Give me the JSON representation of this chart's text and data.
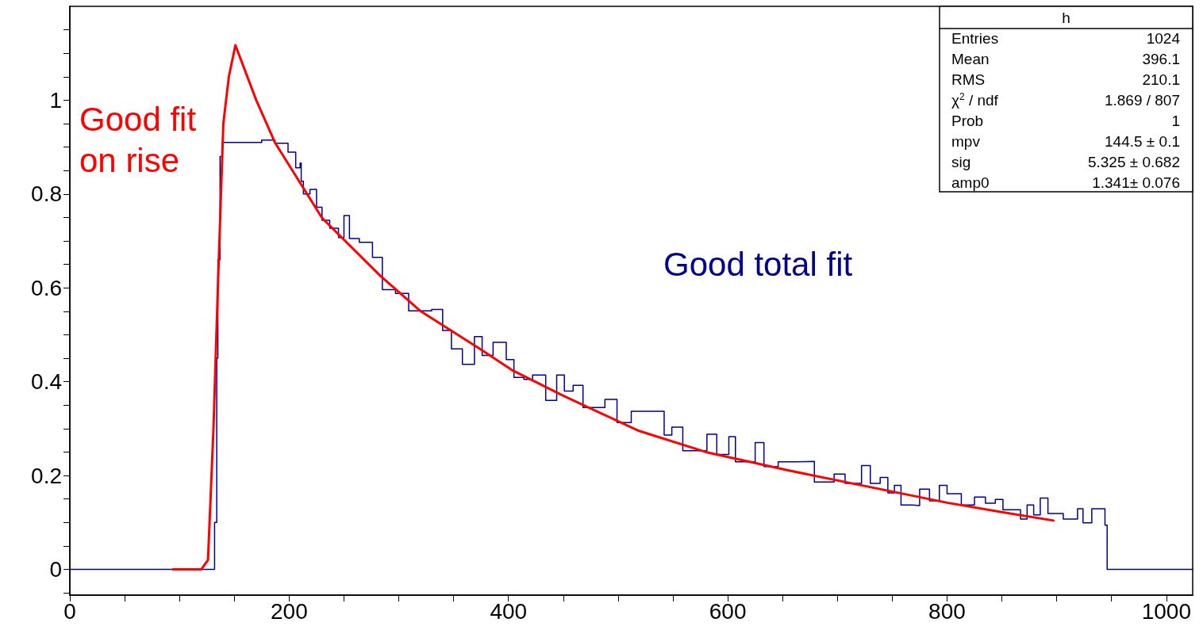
{
  "chart_data": {
    "type": "step",
    "xlim": [
      0,
      1024
    ],
    "xticks": [
      0,
      {
        "value": 50,
        "label": null
      },
      {
        "value": 100,
        "label": null
      },
      {
        "value": 150,
        "label": null
      },
      200,
      {
        "value": 250,
        "label": null
      },
      {
        "value": 300,
        "label": null
      },
      {
        "value": 350,
        "label": null
      },
      400,
      {
        "value": 450,
        "label": null
      },
      {
        "value": 500,
        "label": null
      },
      {
        "value": 550,
        "label": null
      },
      600,
      {
        "value": 650,
        "label": null
      },
      {
        "value": 700,
        "label": null
      },
      {
        "value": 750,
        "label": null
      },
      800,
      {
        "value": 850,
        "label": null
      },
      {
        "value": 900,
        "label": null
      },
      {
        "value": 950,
        "label": null
      },
      1000
    ],
    "ylim": [
      -0.055,
      1.2
    ],
    "yticks": [
      {
        "value": -0.05,
        "label": null
      },
      0,
      {
        "value": 0.05,
        "label": null
      },
      {
        "value": 0.1,
        "label": null
      },
      {
        "value": 0.15,
        "label": null
      },
      0.2,
      {
        "value": 0.25,
        "label": null
      },
      {
        "value": 0.3,
        "label": null
      },
      {
        "value": 0.35,
        "label": null
      },
      0.4,
      {
        "value": 0.45,
        "label": null
      },
      {
        "value": 0.5,
        "label": null
      },
      {
        "value": 0.55,
        "label": null
      },
      0.6,
      {
        "value": 0.65,
        "label": null
      },
      {
        "value": 0.7,
        "label": null
      },
      {
        "value": 0.75,
        "label": null
      },
      0.8,
      {
        "value": 0.85,
        "label": null
      },
      {
        "value": 0.9,
        "label": null
      },
      {
        "value": 0.95,
        "label": null
      },
      1,
      {
        "value": 1.05,
        "label": null
      },
      {
        "value": 1.1,
        "label": null
      },
      {
        "value": 1.15,
        "label": null
      }
    ],
    "grid": false,
    "marker": "none",
    "line_style": "solid",
    "series": [
      {
        "color": "#00008b",
        "x": [
          0,
          130,
          132,
          134,
          135,
          137,
          139,
          160,
          175,
          187,
          199,
          206,
          210,
          211,
          213,
          219,
          225,
          230,
          237,
          245,
          250,
          255,
          264,
          276,
          285,
          297,
          309,
          330,
          340,
          348,
          358,
          369,
          376,
          386,
          398,
          405,
          414,
          422,
          434,
          444,
          451,
          459,
          468,
          488,
          499,
          512,
          525,
          542,
          549,
          559,
          581,
          590,
          601,
          607,
          625,
          633,
          646,
          662,
          679,
          697,
          707,
          722,
          730,
          739,
          746,
          752,
          758,
          768,
          775,
          784,
          793,
          800,
          813,
          825,
          835,
          844,
          851,
          867,
          873,
          879,
          885,
          892,
          906,
          919,
          924,
          932,
          944,
          946,
          1024
        ],
        "values": [
          0,
          0,
          0.1,
          0.45,
          0.66,
          0.88,
          0.91,
          0.91,
          0.915,
          0.908,
          0.889,
          0.856,
          0.866,
          0.827,
          0.8,
          0.81,
          0.772,
          0.744,
          0.727,
          0.707,
          0.754,
          0.705,
          0.697,
          0.665,
          0.596,
          0.588,
          0.551,
          0.554,
          0.509,
          0.47,
          0.437,
          0.496,
          0.456,
          0.484,
          0.447,
          0.409,
          0.405,
          0.414,
          0.36,
          0.414,
          0.38,
          0.392,
          0.345,
          0.362,
          0.313,
          0.337,
          0.337,
          0.286,
          0.303,
          0.253,
          0.288,
          0.245,
          0.283,
          0.229,
          0.27,
          0.219,
          0.229,
          0.23,
          0.186,
          0.203,
          0.183,
          0.221,
          0.183,
          0.196,
          0.163,
          0.179,
          0.137,
          0.136,
          0.171,
          0.146,
          0.179,
          0.161,
          0.137,
          0.154,
          0.141,
          0.149,
          0.127,
          0.107,
          0.137,
          0.116,
          0.152,
          0.119,
          0.107,
          0.129,
          0.099,
          0.129,
          0.094,
          0,
          0
        ]
      },
      {
        "type": "line",
        "color": "#ff0000",
        "x": [
          94,
          120,
          126,
          131,
          135,
          140,
          145,
          151,
          170,
          187,
          230,
          283,
          320,
          374,
          403,
          450,
          518,
          580,
          655,
          720,
          800,
          850,
          897
        ],
        "values": [
          0,
          0,
          0.02,
          0.3,
          0.6,
          0.95,
          1.05,
          1.117,
          1.0,
          0.91,
          0.749,
          0.626,
          0.55,
          0.47,
          0.425,
          0.37,
          0.296,
          0.25,
          0.211,
          0.18,
          0.142,
          0.122,
          0.104
        ]
      }
    ],
    "annotations": [
      "Good fit\non rise",
      "Good total fit",
      "h",
      "Entries\t1024",
      "Mean\t396.1",
      "RMS\t210.1",
      "χ$^{2}$ / ndf\t1.869 / 807",
      "Prob\t1",
      "mpv\t144.5 ± 0.1",
      "sig\t5.325 ± 0.682",
      "amp0\t1.341± 0.076"
    ]
  }
}
